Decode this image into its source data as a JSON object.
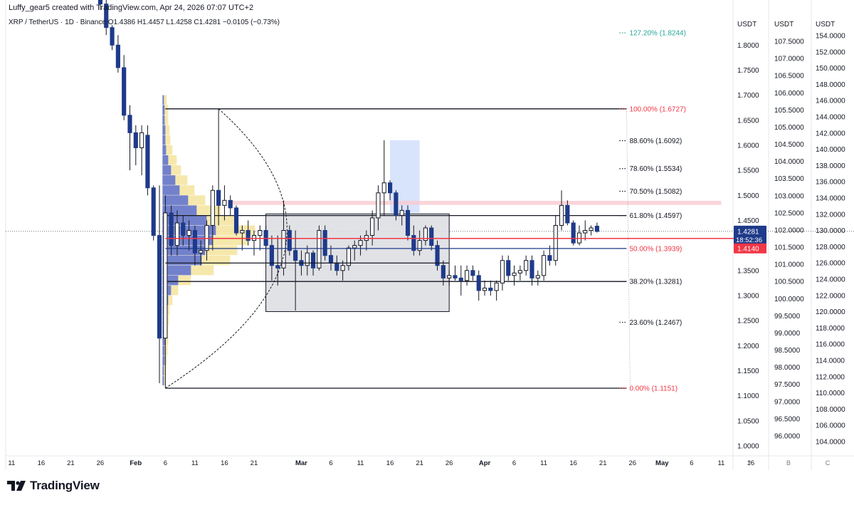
{
  "header": {
    "credit": "Luffy_gear5 created with TradingView.com, Apr 24, 2026 07:07 UTC+2",
    "ohlc": "XRP / TetherUS · 1D · Binance  O1.4386  H1.4457  L1.4258  C1.4281  −0.0105 (−0.73%)"
  },
  "footer": {
    "brand": "TradingView",
    "logo_icon": "tradingview-logo-icon"
  },
  "colors": {
    "up": "#131722",
    "down": "#1e3a8a",
    "fib_red": "#f23645",
    "fib_teal": "#26a69a",
    "fib_gray": "#131722",
    "volume_blue": "#5b6fd0",
    "volume_yellow": "#f5e6a3",
    "price_badge": "#1e3a8a",
    "red_badge": "#f23645"
  },
  "chart_data": {
    "type": "candlestick",
    "symbol": "XRP / TetherUS",
    "interval": "1D",
    "exchange": "Binance",
    "ohlc_last": {
      "open": 1.4386,
      "high": 1.4457,
      "low": 1.4258,
      "close": 1.4281,
      "change": -0.0105,
      "change_pct": -0.73
    },
    "ylim": [
      0.98,
      1.89
    ],
    "xlim_days": [
      0,
      123
    ],
    "x_ticks": [
      {
        "label": "11",
        "day": 1
      },
      {
        "label": "16",
        "day": 6
      },
      {
        "label": "21",
        "day": 11
      },
      {
        "label": "26",
        "day": 16
      },
      {
        "label": "Feb",
        "day": 22
      },
      {
        "label": "6",
        "day": 27
      },
      {
        "label": "11",
        "day": 32
      },
      {
        "label": "16",
        "day": 37
      },
      {
        "label": "21",
        "day": 42
      },
      {
        "label": "Mar",
        "day": 50
      },
      {
        "label": "6",
        "day": 55
      },
      {
        "label": "11",
        "day": 60
      },
      {
        "label": "16",
        "day": 65
      },
      {
        "label": "21",
        "day": 70
      },
      {
        "label": "26",
        "day": 75
      },
      {
        "label": "Apr",
        "day": 81
      },
      {
        "label": "6",
        "day": 86
      },
      {
        "label": "11",
        "day": 91
      },
      {
        "label": "16",
        "day": 96
      },
      {
        "label": "21",
        "day": 101
      },
      {
        "label": "26",
        "day": 106
      },
      {
        "label": "May",
        "day": 111
      },
      {
        "label": "6",
        "day": 116
      },
      {
        "label": "11",
        "day": 121
      },
      {
        "label": "16",
        "day": 126
      }
    ],
    "axes": [
      {
        "title": "USDT",
        "column": "A",
        "ticks": [
          "1.8000",
          "1.7500",
          "1.7000",
          "1.6500",
          "1.6000",
          "1.5500",
          "1.5000",
          "1.4500",
          "1.4000",
          "1.3500",
          "1.3000",
          "1.2500",
          "1.2000",
          "1.1500",
          "1.1000",
          "1.0500",
          "1.0000"
        ],
        "values": [
          1.8,
          1.75,
          1.7,
          1.65,
          1.6,
          1.55,
          1.5,
          1.45,
          1.4,
          1.35,
          1.3,
          1.25,
          1.2,
          1.15,
          1.1,
          1.05,
          1.0
        ]
      },
      {
        "title": "USDT",
        "column": "B",
        "ticks": [
          "107.5000",
          "107.0000",
          "106.5000",
          "106.0000",
          "105.5000",
          "105.0000",
          "104.5000",
          "104.0000",
          "103.5000",
          "103.0000",
          "102.5000",
          "102.0000",
          "101.5000",
          "101.0000",
          "100.5000",
          "100.0000",
          "99.5000",
          "99.0000",
          "98.5000",
          "98.0000",
          "97.5000",
          "97.0000",
          "96.5000",
          "96.0000"
        ],
        "values": [
          107.5,
          107.0,
          106.5,
          106.0,
          105.5,
          105.0,
          104.5,
          104.0,
          103.5,
          103.0,
          102.5,
          102.0,
          101.5,
          101.0,
          100.5,
          100.0,
          99.5,
          99.0,
          98.5,
          98.0,
          97.5,
          97.0,
          96.5,
          96.0
        ]
      },
      {
        "title": "USDT",
        "column": "C",
        "ticks": [
          "154.0000",
          "152.0000",
          "150.0000",
          "148.0000",
          "146.0000",
          "144.0000",
          "142.0000",
          "140.0000",
          "138.0000",
          "136.0000",
          "134.0000",
          "132.0000",
          "130.0000",
          "128.0000",
          "126.0000",
          "124.0000",
          "122.0000",
          "120.0000",
          "118.0000",
          "116.0000",
          "114.0000",
          "112.0000",
          "110.0000",
          "108.0000",
          "106.0000",
          "104.0000"
        ],
        "values": [
          154,
          152,
          150,
          148,
          146,
          144,
          142,
          140,
          138,
          136,
          134,
          132,
          130,
          128,
          126,
          124,
          122,
          120,
          118,
          116,
          114,
          112,
          110,
          108,
          106,
          104
        ]
      }
    ],
    "price_labels": {
      "last": "1.4281",
      "countdown": "18:52:36",
      "red_line": "1.4140",
      "last_value": 1.4281,
      "red_line_value": 1.414
    },
    "fib_levels": [
      {
        "label": "127.20% (1.8244)",
        "price": 1.8244,
        "color": "teal"
      },
      {
        "label": "100.00% (1.6727)",
        "price": 1.6727,
        "color": "red"
      },
      {
        "label": "88.60% (1.6092)",
        "price": 1.6092,
        "color": "gray"
      },
      {
        "label": "78.60% (1.5534)",
        "price": 1.5534,
        "color": "gray"
      },
      {
        "label": "70.50% (1.5082)",
        "price": 1.5082,
        "color": "gray"
      },
      {
        "label": "61.80% (1.4597)",
        "price": 1.4597,
        "color": "gray"
      },
      {
        "label": "50.00% (1.3939)",
        "price": 1.3939,
        "color": "red"
      },
      {
        "label": "38.20% (1.3281)",
        "price": 1.3281,
        "color": "gray"
      },
      {
        "label": "23.60% (1.2467)",
        "price": 1.2467,
        "color": "gray"
      },
      {
        "label": "0.00% (1.1151)",
        "price": 1.1151,
        "color": "red"
      }
    ],
    "fib_lines_drawn": [
      1.6727,
      1.4597,
      1.3281,
      1.1151
    ],
    "candles": [
      {
        "d": 16,
        "o": 1.912,
        "h": 1.925,
        "l": 1.87,
        "c": 1.882
      },
      {
        "d": 17,
        "o": 1.882,
        "h": 1.89,
        "l": 1.82,
        "c": 1.835
      },
      {
        "d": 18,
        "o": 1.835,
        "h": 1.84,
        "l": 1.79,
        "c": 1.8
      },
      {
        "d": 19,
        "o": 1.8,
        "h": 1.82,
        "l": 1.745,
        "c": 1.755
      },
      {
        "d": 20,
        "o": 1.755,
        "h": 1.78,
        "l": 1.65,
        "c": 1.66
      },
      {
        "d": 21,
        "o": 1.66,
        "h": 1.68,
        "l": 1.55,
        "c": 1.625
      },
      {
        "d": 22,
        "o": 1.625,
        "h": 1.64,
        "l": 1.56,
        "c": 1.595
      },
      {
        "d": 23,
        "o": 1.595,
        "h": 1.64,
        "l": 1.54,
        "c": 1.625
      },
      {
        "d": 24,
        "o": 1.62,
        "h": 1.64,
        "l": 1.5,
        "c": 1.515
      },
      {
        "d": 25,
        "o": 1.515,
        "h": 1.52,
        "l": 1.41,
        "c": 1.42
      },
      {
        "d": 26,
        "o": 1.42,
        "h": 1.52,
        "l": 1.125,
        "c": 1.215
      },
      {
        "d": 27,
        "o": 1.215,
        "h": 1.5,
        "l": 1.115,
        "c": 1.465
      },
      {
        "d": 28,
        "o": 1.465,
        "h": 1.48,
        "l": 1.38,
        "c": 1.4
      },
      {
        "d": 29,
        "o": 1.4,
        "h": 1.47,
        "l": 1.38,
        "c": 1.445
      },
      {
        "d": 30,
        "o": 1.445,
        "h": 1.46,
        "l": 1.4,
        "c": 1.42
      },
      {
        "d": 31,
        "o": 1.42,
        "h": 1.45,
        "l": 1.39,
        "c": 1.43
      },
      {
        "d": 32,
        "o": 1.43,
        "h": 1.44,
        "l": 1.36,
        "c": 1.385
      },
      {
        "d": 33,
        "o": 1.385,
        "h": 1.41,
        "l": 1.36,
        "c": 1.39
      },
      {
        "d": 34,
        "o": 1.39,
        "h": 1.45,
        "l": 1.37,
        "c": 1.44
      },
      {
        "d": 35,
        "o": 1.44,
        "h": 1.52,
        "l": 1.39,
        "c": 1.51
      },
      {
        "d": 36,
        "o": 1.51,
        "h": 1.673,
        "l": 1.44,
        "c": 1.48
      },
      {
        "d": 37,
        "o": 1.48,
        "h": 1.52,
        "l": 1.45,
        "c": 1.49
      },
      {
        "d": 38,
        "o": 1.49,
        "h": 1.5,
        "l": 1.46,
        "c": 1.475
      },
      {
        "d": 39,
        "o": 1.475,
        "h": 1.48,
        "l": 1.42,
        "c": 1.425
      },
      {
        "d": 40,
        "o": 1.425,
        "h": 1.44,
        "l": 1.39,
        "c": 1.43
      },
      {
        "d": 41,
        "o": 1.43,
        "h": 1.45,
        "l": 1.4,
        "c": 1.41
      },
      {
        "d": 42,
        "o": 1.41,
        "h": 1.43,
        "l": 1.38,
        "c": 1.42
      },
      {
        "d": 43,
        "o": 1.42,
        "h": 1.44,
        "l": 1.39,
        "c": 1.43
      },
      {
        "d": 44,
        "o": 1.43,
        "h": 1.44,
        "l": 1.39,
        "c": 1.4
      },
      {
        "d": 45,
        "o": 1.4,
        "h": 1.42,
        "l": 1.33,
        "c": 1.36
      },
      {
        "d": 46,
        "o": 1.36,
        "h": 1.42,
        "l": 1.32,
        "c": 1.355
      },
      {
        "d": 47,
        "o": 1.355,
        "h": 1.49,
        "l": 1.34,
        "c": 1.43
      },
      {
        "d": 48,
        "o": 1.43,
        "h": 1.44,
        "l": 1.38,
        "c": 1.39
      },
      {
        "d": 49,
        "o": 1.39,
        "h": 1.43,
        "l": 1.27,
        "c": 1.37
      },
      {
        "d": 50,
        "o": 1.37,
        "h": 1.39,
        "l": 1.34,
        "c": 1.36
      },
      {
        "d": 51,
        "o": 1.36,
        "h": 1.4,
        "l": 1.34,
        "c": 1.385
      },
      {
        "d": 52,
        "o": 1.385,
        "h": 1.39,
        "l": 1.34,
        "c": 1.355
      },
      {
        "d": 53,
        "o": 1.355,
        "h": 1.44,
        "l": 1.35,
        "c": 1.43
      },
      {
        "d": 54,
        "o": 1.43,
        "h": 1.44,
        "l": 1.37,
        "c": 1.38
      },
      {
        "d": 55,
        "o": 1.38,
        "h": 1.4,
        "l": 1.35,
        "c": 1.365
      },
      {
        "d": 56,
        "o": 1.365,
        "h": 1.38,
        "l": 1.34,
        "c": 1.35
      },
      {
        "d": 57,
        "o": 1.35,
        "h": 1.37,
        "l": 1.33,
        "c": 1.36
      },
      {
        "d": 58,
        "o": 1.36,
        "h": 1.4,
        "l": 1.35,
        "c": 1.395
      },
      {
        "d": 59,
        "o": 1.395,
        "h": 1.41,
        "l": 1.37,
        "c": 1.4
      },
      {
        "d": 60,
        "o": 1.4,
        "h": 1.42,
        "l": 1.38,
        "c": 1.41
      },
      {
        "d": 61,
        "o": 1.41,
        "h": 1.43,
        "l": 1.39,
        "c": 1.42
      },
      {
        "d": 62,
        "o": 1.42,
        "h": 1.47,
        "l": 1.4,
        "c": 1.455
      },
      {
        "d": 63,
        "o": 1.455,
        "h": 1.52,
        "l": 1.43,
        "c": 1.505
      },
      {
        "d": 64,
        "o": 1.505,
        "h": 1.61,
        "l": 1.46,
        "c": 1.525
      },
      {
        "d": 65,
        "o": 1.525,
        "h": 1.53,
        "l": 1.49,
        "c": 1.505
      },
      {
        "d": 66,
        "o": 1.505,
        "h": 1.51,
        "l": 1.45,
        "c": 1.46
      },
      {
        "d": 67,
        "o": 1.46,
        "h": 1.48,
        "l": 1.44,
        "c": 1.47
      },
      {
        "d": 68,
        "o": 1.47,
        "h": 1.48,
        "l": 1.41,
        "c": 1.42
      },
      {
        "d": 69,
        "o": 1.42,
        "h": 1.44,
        "l": 1.38,
        "c": 1.39
      },
      {
        "d": 70,
        "o": 1.39,
        "h": 1.43,
        "l": 1.38,
        "c": 1.41
      },
      {
        "d": 71,
        "o": 1.41,
        "h": 1.44,
        "l": 1.4,
        "c": 1.435
      },
      {
        "d": 72,
        "o": 1.435,
        "h": 1.44,
        "l": 1.39,
        "c": 1.4
      },
      {
        "d": 73,
        "o": 1.4,
        "h": 1.41,
        "l": 1.35,
        "c": 1.36
      },
      {
        "d": 74,
        "o": 1.36,
        "h": 1.37,
        "l": 1.32,
        "c": 1.335
      },
      {
        "d": 75,
        "o": 1.335,
        "h": 1.35,
        "l": 1.32,
        "c": 1.34
      },
      {
        "d": 76,
        "o": 1.34,
        "h": 1.36,
        "l": 1.33,
        "c": 1.335
      },
      {
        "d": 77,
        "o": 1.335,
        "h": 1.36,
        "l": 1.3,
        "c": 1.33
      },
      {
        "d": 78,
        "o": 1.33,
        "h": 1.36,
        "l": 1.32,
        "c": 1.35
      },
      {
        "d": 79,
        "o": 1.35,
        "h": 1.36,
        "l": 1.33,
        "c": 1.34
      },
      {
        "d": 80,
        "o": 1.34,
        "h": 1.35,
        "l": 1.29,
        "c": 1.31
      },
      {
        "d": 81,
        "o": 1.31,
        "h": 1.33,
        "l": 1.3,
        "c": 1.315
      },
      {
        "d": 82,
        "o": 1.315,
        "h": 1.33,
        "l": 1.3,
        "c": 1.31
      },
      {
        "d": 83,
        "o": 1.31,
        "h": 1.33,
        "l": 1.29,
        "c": 1.325
      },
      {
        "d": 84,
        "o": 1.325,
        "h": 1.38,
        "l": 1.31,
        "c": 1.37
      },
      {
        "d": 85,
        "o": 1.37,
        "h": 1.38,
        "l": 1.33,
        "c": 1.34
      },
      {
        "d": 86,
        "o": 1.34,
        "h": 1.36,
        "l": 1.32,
        "c": 1.345
      },
      {
        "d": 87,
        "o": 1.345,
        "h": 1.36,
        "l": 1.33,
        "c": 1.35
      },
      {
        "d": 88,
        "o": 1.35,
        "h": 1.38,
        "l": 1.34,
        "c": 1.37
      },
      {
        "d": 89,
        "o": 1.37,
        "h": 1.38,
        "l": 1.32,
        "c": 1.335
      },
      {
        "d": 90,
        "o": 1.335,
        "h": 1.35,
        "l": 1.32,
        "c": 1.34
      },
      {
        "d": 91,
        "o": 1.34,
        "h": 1.39,
        "l": 1.33,
        "c": 1.38
      },
      {
        "d": 92,
        "o": 1.38,
        "h": 1.4,
        "l": 1.36,
        "c": 1.37
      },
      {
        "d": 93,
        "o": 1.37,
        "h": 1.46,
        "l": 1.36,
        "c": 1.44
      },
      {
        "d": 94,
        "o": 1.44,
        "h": 1.51,
        "l": 1.43,
        "c": 1.48
      },
      {
        "d": 95,
        "o": 1.48,
        "h": 1.49,
        "l": 1.44,
        "c": 1.445
      },
      {
        "d": 96,
        "o": 1.445,
        "h": 1.45,
        "l": 1.4,
        "c": 1.405
      },
      {
        "d": 97,
        "o": 1.405,
        "h": 1.44,
        "l": 1.4,
        "c": 1.425
      },
      {
        "d": 98,
        "o": 1.425,
        "h": 1.45,
        "l": 1.41,
        "c": 1.43
      },
      {
        "d": 99,
        "o": 1.43,
        "h": 1.44,
        "l": 1.42,
        "c": 1.435
      },
      {
        "d": 100,
        "o": 1.4386,
        "h": 1.4457,
        "l": 1.4258,
        "c": 1.4281
      }
    ],
    "volume_profile": [
      {
        "price": 1.69,
        "blue": 2,
        "yellow": 6
      },
      {
        "price": 1.67,
        "blue": 3,
        "yellow": 8
      },
      {
        "price": 1.65,
        "blue": 3,
        "yellow": 8
      },
      {
        "price": 1.63,
        "blue": 4,
        "yellow": 10
      },
      {
        "price": 1.61,
        "blue": 4,
        "yellow": 11
      },
      {
        "price": 1.59,
        "blue": 5,
        "yellow": 14
      },
      {
        "price": 1.57,
        "blue": 8,
        "yellow": 20
      },
      {
        "price": 1.55,
        "blue": 12,
        "yellow": 26
      },
      {
        "price": 1.53,
        "blue": 18,
        "yellow": 35
      },
      {
        "price": 1.51,
        "blue": 24,
        "yellow": 45
      },
      {
        "price": 1.49,
        "blue": 36,
        "yellow": 60
      },
      {
        "price": 1.47,
        "blue": 48,
        "yellow": 82
      },
      {
        "price": 1.45,
        "blue": 62,
        "yellow": 105
      },
      {
        "price": 1.43,
        "blue": 75,
        "yellow": 130
      },
      {
        "price": 1.41,
        "blue": 70,
        "yellow": 120
      },
      {
        "price": 1.39,
        "blue": 60,
        "yellow": 105
      },
      {
        "price": 1.37,
        "blue": 55,
        "yellow": 95
      },
      {
        "price": 1.35,
        "blue": 40,
        "yellow": 72
      },
      {
        "price": 1.33,
        "blue": 22,
        "yellow": 40
      },
      {
        "price": 1.31,
        "blue": 12,
        "yellow": 22
      },
      {
        "price": 1.29,
        "blue": 8,
        "yellow": 14
      },
      {
        "price": 1.27,
        "blue": 6,
        "yellow": 10
      },
      {
        "price": 1.25,
        "blue": 5,
        "yellow": 9
      },
      {
        "price": 1.23,
        "blue": 4,
        "yellow": 8
      },
      {
        "price": 1.21,
        "blue": 4,
        "yellow": 8
      },
      {
        "price": 1.19,
        "blue": 3,
        "yellow": 7
      },
      {
        "price": 1.17,
        "blue": 3,
        "yellow": 6
      },
      {
        "price": 1.15,
        "blue": 2,
        "yellow": 5
      },
      {
        "price": 1.13,
        "blue": 2,
        "yellow": 4
      }
    ],
    "drawings": {
      "gray_box": {
        "x1": 44,
        "x2": 75,
        "y1": 1.463,
        "y2": 1.268
      },
      "blue_box": {
        "x1": 65,
        "x2": 70,
        "y1": 1.61,
        "y2": 1.465
      },
      "pink_band": {
        "x1": 38,
        "x2": 121,
        "y1": 1.489,
        "y2": 1.481
      },
      "black_level_mid": {
        "x1": 27,
        "x2": 75,
        "y": 1.365
      },
      "blue_level": {
        "x1": 27,
        "x2": 105,
        "y": 1.3939
      },
      "red_level": {
        "x1": 27,
        "x2": 125,
        "y": 1.414
      },
      "arc": {
        "from_day": 27,
        "from_price": 1.1151,
        "to_day": 36,
        "to_price": 1.6727,
        "ctrl_day": 63,
        "ctrl_price": 1.39
      },
      "fib_x1": 27,
      "fib_x2": 105
    }
  }
}
